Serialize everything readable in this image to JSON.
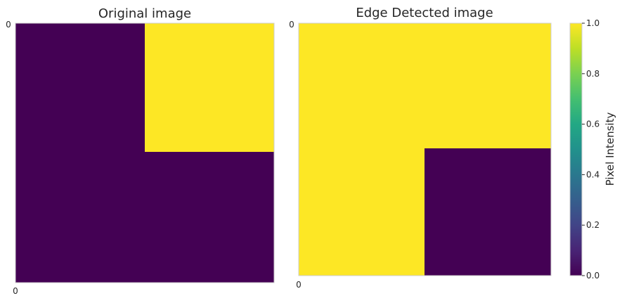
{
  "colors": {
    "low": "#440154",
    "high": "#fde725",
    "frame": "#cccccc",
    "text": "#262626"
  },
  "colormap": "viridis",
  "chart_data": [
    {
      "type": "heatmap",
      "title": "Original image",
      "xticks": [
        "0"
      ],
      "yticks": [
        "0"
      ],
      "grid": [
        [
          0,
          1
        ],
        [
          0,
          0
        ]
      ]
    },
    {
      "type": "heatmap",
      "title": "Edge Detected image",
      "xticks": [
        "0"
      ],
      "yticks": [
        "0"
      ],
      "grid": [
        [
          1,
          1
        ],
        [
          1,
          0
        ]
      ]
    }
  ],
  "colorbar": {
    "label": "Pixel Intensity",
    "range": [
      0.0,
      1.0
    ],
    "ticks": [
      "0.0",
      "0.2",
      "0.4",
      "0.6",
      "0.8",
      "1.0"
    ]
  }
}
